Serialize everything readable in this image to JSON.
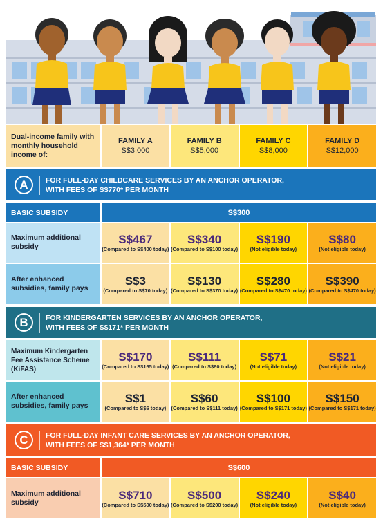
{
  "header_row": {
    "label": "Dual-income family with monthly household income of:",
    "families": [
      {
        "name": "FAMILY A",
        "income": "S$3,000"
      },
      {
        "name": "FAMILY B",
        "income": "S$5,000"
      },
      {
        "name": "FAMILY C",
        "income": "S$8,000"
      },
      {
        "name": "FAMILY D",
        "income": "S$12,000"
      }
    ]
  },
  "section_a": {
    "letter": "A",
    "title_line1": "FOR FULL-DAY CHILDCARE SERVICES BY AN ANCHOR OPERATOR,",
    "title_line2": "WITH FEES OF S$770* PER MONTH",
    "basic_label": "BASIC SUBSIDY",
    "basic_value": "S$300",
    "rows": [
      {
        "label": "Maximum additional subsidy",
        "cells": [
          {
            "value": "S$467",
            "note": "(Compared to S$400 today)"
          },
          {
            "value": "S$340",
            "note": "(Compared to S$100 today)"
          },
          {
            "value": "S$190",
            "note": "(Not eligible today)"
          },
          {
            "value": "S$80",
            "note": "(Not eligible today)"
          }
        ]
      },
      {
        "label": "After enhanced subsidies, family pays",
        "cells": [
          {
            "value": "S$3",
            "note": "(Compared to S$70 today)"
          },
          {
            "value": "S$130",
            "note": "(Compared to S$370 today)"
          },
          {
            "value": "S$280",
            "note": "(Compared to S$470 today)"
          },
          {
            "value": "S$390",
            "note": "(Compared to S$470 today)"
          }
        ]
      }
    ]
  },
  "section_b": {
    "letter": "B",
    "title_line1": "FOR KINDERGARTEN SERVICES BY AN ANCHOR OPERATOR,",
    "title_line2": "WITH FEES OF S$171* PER MONTH",
    "rows": [
      {
        "label": "Maximum Kindergarten Fee Assistance Scheme (KiFAS)",
        "cells": [
          {
            "value": "S$170",
            "note": "(Compared to S$165 today)"
          },
          {
            "value": "S$111",
            "note": "(Compared to S$60 today)"
          },
          {
            "value": "S$71",
            "note": "(Not eligible today)"
          },
          {
            "value": "S$21",
            "note": "(Not eligible today)"
          }
        ]
      },
      {
        "label": "After enhanced subsidies, family pays",
        "cells": [
          {
            "value": "S$1",
            "note": "(Compared to S$6 today)"
          },
          {
            "value": "S$60",
            "note": "(Compared to S$111 today)"
          },
          {
            "value": "S$100",
            "note": "(Compared to S$171 today)"
          },
          {
            "value": "S$150",
            "note": "(Compared to S$171 today)"
          }
        ]
      }
    ]
  },
  "section_c": {
    "letter": "C",
    "title_line1": "FOR FULL-DAY INFANT CARE SERVICES BY AN ANCHOR OPERATOR,",
    "title_line2": "WITH FEES OF S$1,364* PER MONTH",
    "basic_label": "BASIC SUBSIDY",
    "basic_value": "S$600",
    "rows": [
      {
        "label": "Maximum additional subsidy",
        "cells": [
          {
            "value": "S$710",
            "note": "(Compared to S$500 today)"
          },
          {
            "value": "S$500",
            "note": "(Compared to S$200 today)"
          },
          {
            "value": "S$240",
            "note": "(Not eligible today)"
          },
          {
            "value": "S$40",
            "note": "(Not eligible today)"
          }
        ]
      }
    ]
  },
  "colors": {
    "family_a": "#fbe0a4",
    "family_b": "#fde77b",
    "family_c": "#ffd600",
    "family_d": "#fbaf1c",
    "section_a": "#1b75bb",
    "section_a_basic": "#1b75bb",
    "section_b": "#1f6f86",
    "section_c": "#f15a24"
  }
}
